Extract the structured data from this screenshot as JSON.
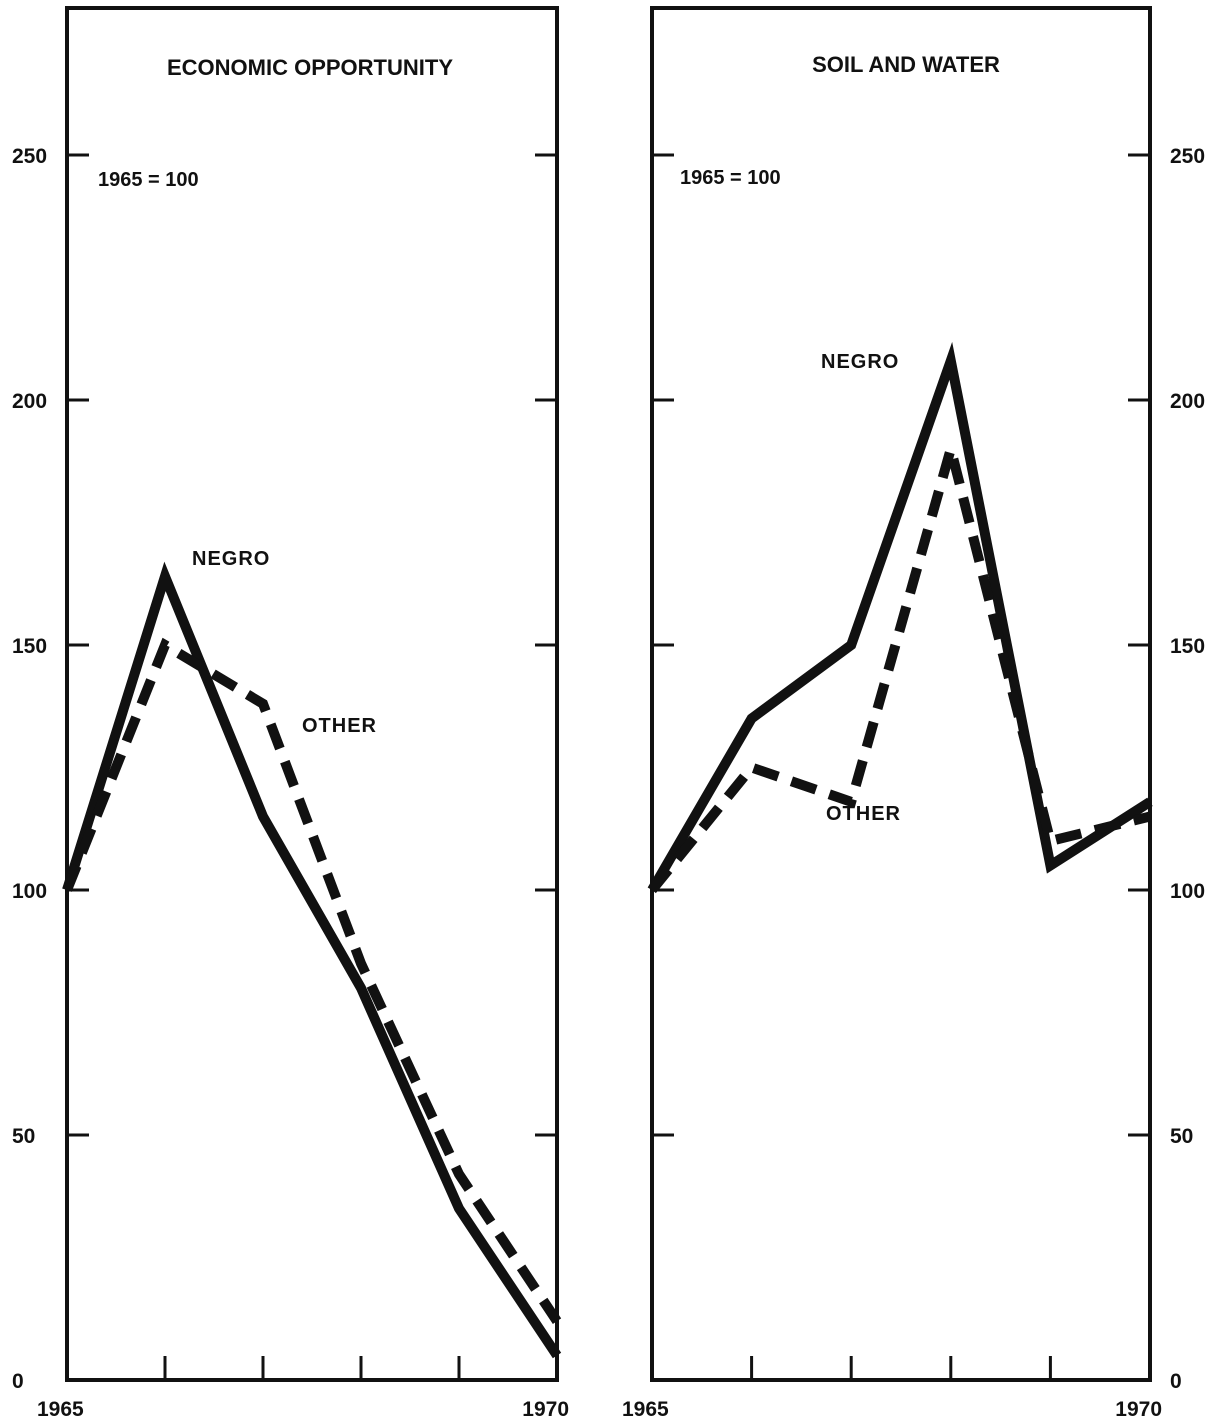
{
  "chart_data": [
    {
      "type": "line",
      "title": "ECONOMIC OPPORTUNITY",
      "annotation": "1965 = 100",
      "x": [
        1965,
        1966,
        1967,
        1968,
        1969,
        1970
      ],
      "ylim": [
        0,
        280
      ],
      "yticks": [
        0,
        50,
        100,
        150,
        200,
        250
      ],
      "ytick_labels": [
        "0",
        "50",
        "100",
        "150",
        "200",
        "250"
      ],
      "xtick_labels": [
        "1965",
        "",
        "",
        "",
        "",
        "1970"
      ],
      "y_axis_side": "left",
      "series": [
        {
          "name": "NEGRO",
          "style": "solid",
          "values": [
            100,
            164,
            115,
            80,
            35,
            5
          ]
        },
        {
          "name": "OTHER",
          "style": "dashed",
          "values": [
            100,
            150,
            138,
            85,
            42,
            12
          ]
        }
      ]
    },
    {
      "type": "line",
      "title": "SOIL AND WATER",
      "annotation": "1965 = 100",
      "x": [
        1965,
        1966,
        1967,
        1968,
        1969,
        1970
      ],
      "ylim": [
        0,
        280
      ],
      "yticks": [
        0,
        50,
        100,
        150,
        200,
        250
      ],
      "ytick_labels": [
        "0",
        "50",
        "100",
        "150",
        "200",
        "250"
      ],
      "xtick_labels": [
        "1965",
        "",
        "",
        "",
        "",
        "1970"
      ],
      "y_axis_side": "right",
      "series": [
        {
          "name": "NEGRO",
          "style": "solid",
          "values": [
            100,
            135,
            150,
            208,
            105,
            118
          ]
        },
        {
          "name": "OTHER",
          "style": "dashed",
          "values": [
            100,
            125,
            118,
            190,
            110,
            115
          ]
        }
      ]
    }
  ]
}
